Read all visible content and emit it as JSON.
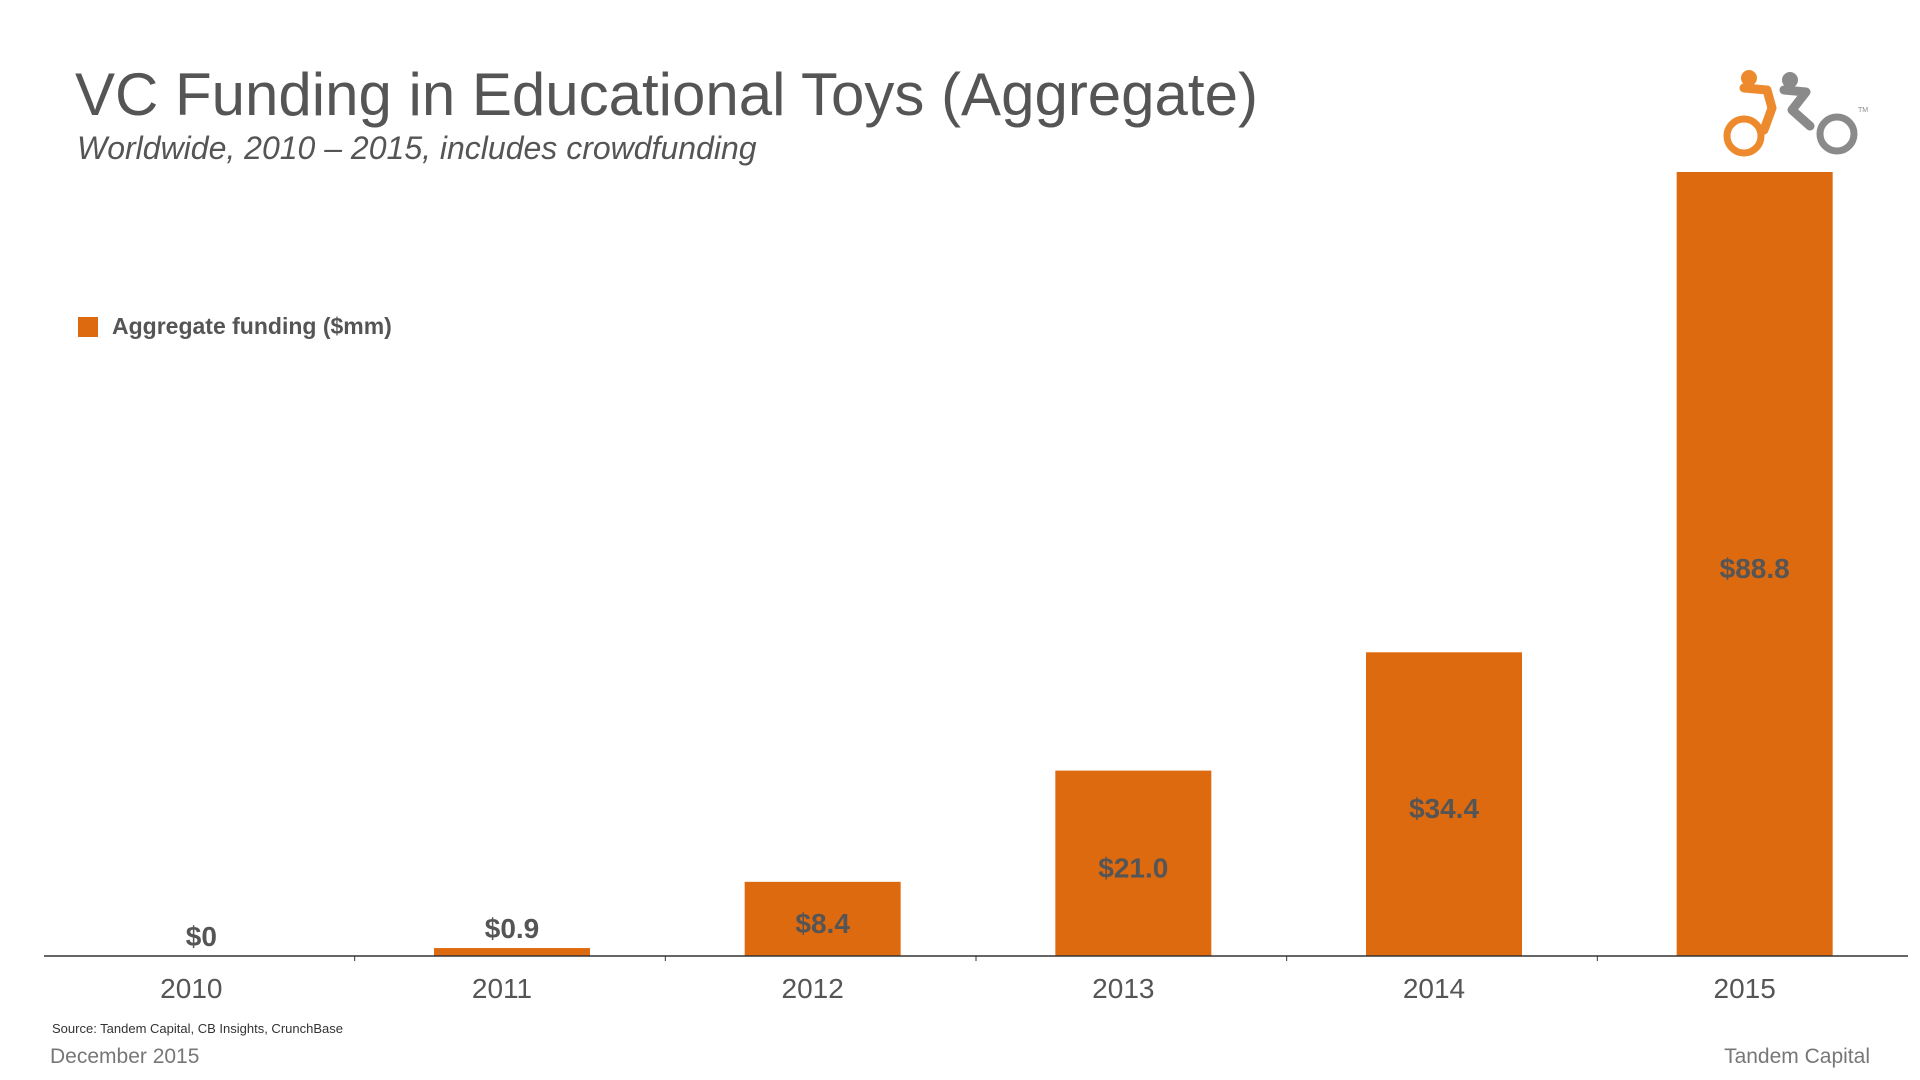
{
  "header": {
    "title": "VC Funding in Educational Toys (Aggregate)",
    "subtitle": "Worldwide, 2010 – 2015, includes crowdfunding"
  },
  "logo": {
    "icon": "tandem-bicycle-icon",
    "trademark": "TM",
    "colors": {
      "front": "#EE8A2E",
      "back": "#8A8A8A"
    }
  },
  "colors": {
    "bar": "#DE6A10",
    "text": "#555555",
    "axis": "#333333"
  },
  "chart_data": {
    "type": "bar",
    "title": "VC Funding in Educational Toys (Aggregate)",
    "subtitle": "Worldwide, 2010 – 2015, includes crowdfunding",
    "xlabel": "",
    "ylabel": "",
    "categories": [
      "2010",
      "2011",
      "2012",
      "2013",
      "2014",
      "2015"
    ],
    "series": [
      {
        "name": "Aggregate funding ($mm)",
        "values": [
          0,
          0.9,
          8.4,
          21.0,
          34.4,
          88.8
        ],
        "labels": [
          "$0",
          "$0.9",
          "$8.4",
          "$21.0",
          "$34.4",
          "$88.8"
        ]
      }
    ],
    "ylim": [
      0,
      88.8
    ],
    "grid": false,
    "legend_position": "top-left"
  },
  "footer": {
    "source": "Source: Tandem Capital, CB Insights, CrunchBase",
    "date": "December 2015",
    "company": "Tandem Capital"
  }
}
